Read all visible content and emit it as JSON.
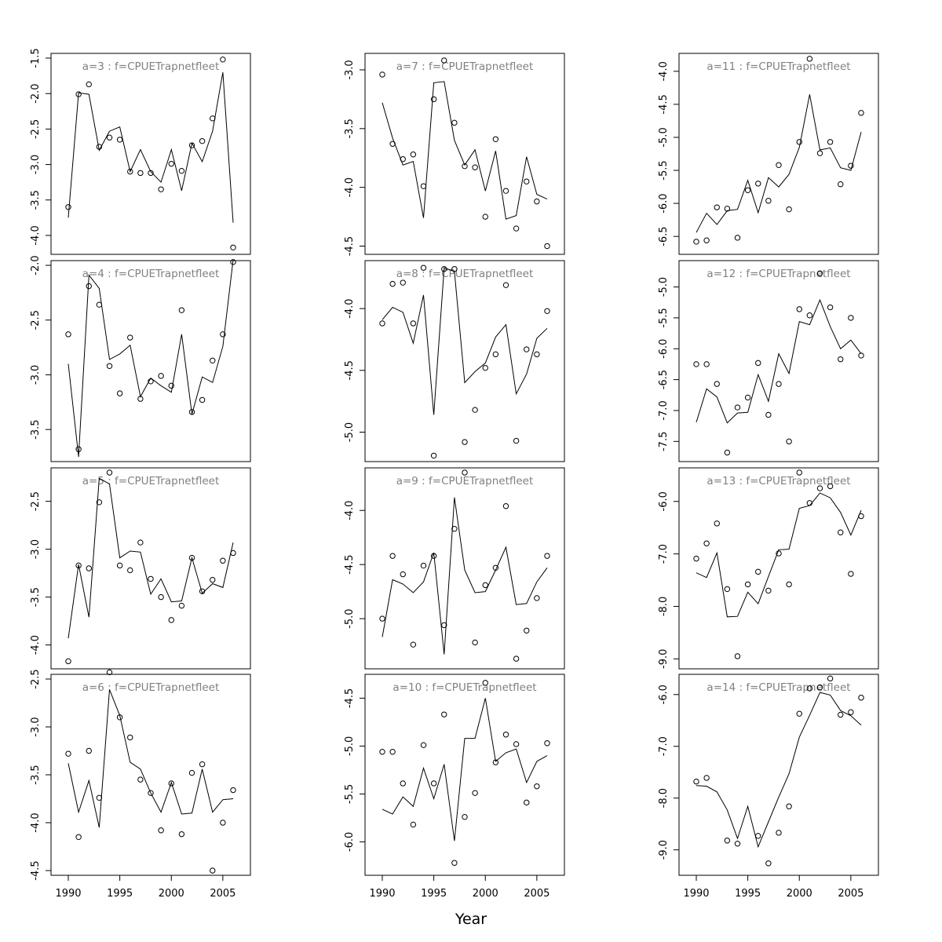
{
  "figure": {
    "xlabel": "Year"
  },
  "chart_data": [
    {
      "type": "line",
      "title": "a=3  :  f=CPUETrapnetfleet",
      "xlim": [
        1990,
        2006
      ],
      "ylim": [
        -4.2,
        -1.5
      ],
      "yticks": [
        "-1.5",
        "-2.0",
        "-2.5",
        "-3.0",
        "-3.5",
        "-4.0"
      ],
      "xticks": [],
      "x": [
        1990,
        1991,
        1992,
        1993,
        1994,
        1995,
        1996,
        1997,
        1998,
        1999,
        2000,
        2001,
        2002,
        2003,
        2004,
        2005,
        2006
      ],
      "series": [
        {
          "style": "line",
          "values": [
            -3.75,
            -1.99,
            -2.01,
            -2.8,
            -2.53,
            -2.47,
            -3.1,
            -2.79,
            -3.1,
            -3.25,
            -2.79,
            -3.37,
            -2.7,
            -2.96,
            -2.53,
            -1.7,
            -3.82
          ]
        },
        {
          "style": "points",
          "values": [
            -3.6,
            -2.01,
            -1.87,
            -2.75,
            -2.62,
            -2.65,
            -3.1,
            -3.12,
            -3.12,
            -3.35,
            -2.99,
            -3.09,
            -2.73,
            -2.67,
            -2.35,
            -1.52,
            -4.17
          ]
        }
      ]
    },
    {
      "type": "line",
      "title": "a=4  :  f=CPUETrapnetfleet",
      "xlim": [
        1990,
        2006
      ],
      "ylim": [
        -3.75,
        -2.0
      ],
      "yticks": [
        "-2.0",
        "-2.5",
        "-3.0",
        "-3.5"
      ],
      "xticks": [],
      "x": [
        1990,
        1991,
        1992,
        1993,
        1994,
        1995,
        1996,
        1997,
        1998,
        1999,
        2000,
        2001,
        2002,
        2003,
        2004,
        2005,
        2006
      ],
      "series": [
        {
          "style": "line",
          "values": [
            -2.9,
            -3.75,
            -2.09,
            -2.21,
            -2.86,
            -2.81,
            -2.73,
            -3.2,
            -3.03,
            -3.1,
            -3.16,
            -2.63,
            -3.36,
            -3.02,
            -3.07,
            -2.74,
            -1.95
          ]
        },
        {
          "style": "points",
          "values": [
            -2.63,
            -3.68,
            -2.19,
            -2.36,
            -2.92,
            -3.17,
            -2.66,
            -3.22,
            -3.06,
            -3.01,
            -3.1,
            -2.41,
            -3.34,
            -3.23,
            -2.87,
            -2.63,
            -1.97
          ]
        }
      ]
    },
    {
      "type": "line",
      "title": "a=5  :  f=CPUETrapnetfleet",
      "xlim": [
        1990,
        2006
      ],
      "ylim": [
        -4.2,
        -2.2
      ],
      "yticks": [
        "-2.5",
        "-3.0",
        "-3.5",
        "-4.0"
      ],
      "xticks": [],
      "x": [
        1990,
        1991,
        1992,
        1993,
        1994,
        1995,
        1996,
        1997,
        1998,
        1999,
        2000,
        2001,
        2002,
        2003,
        2004,
        2005,
        2006
      ],
      "series": [
        {
          "style": "line",
          "values": [
            -3.93,
            -3.16,
            -3.71,
            -2.26,
            -2.32,
            -3.09,
            -3.02,
            -3.03,
            -3.47,
            -3.31,
            -3.55,
            -3.54,
            -3.09,
            -3.46,
            -3.36,
            -3.4,
            -2.93
          ]
        },
        {
          "style": "points",
          "values": [
            -4.17,
            -3.17,
            -3.2,
            -2.51,
            -2.2,
            -3.17,
            -3.22,
            -2.93,
            -3.31,
            -3.5,
            -3.74,
            -3.59,
            -3.09,
            -3.44,
            -3.32,
            -3.12,
            -3.04
          ]
        }
      ]
    },
    {
      "type": "line",
      "title": "a=6  :  f=CPUETrapnetfleet",
      "xlim": [
        1990,
        2006
      ],
      "ylim": [
        -4.5,
        -2.5
      ],
      "yticks": [
        "-2.5",
        "-3.0",
        "-3.5",
        "-4.0",
        "-4.5"
      ],
      "xticks": [
        "1990",
        "1995",
        "2000",
        "2005"
      ],
      "x": [
        1990,
        1991,
        1992,
        1993,
        1994,
        1995,
        1996,
        1997,
        1998,
        1999,
        2000,
        2001,
        2002,
        2003,
        2004,
        2005,
        2006
      ],
      "series": [
        {
          "style": "line",
          "values": [
            -3.38,
            -3.89,
            -3.56,
            -4.05,
            -2.61,
            -2.88,
            -3.37,
            -3.44,
            -3.69,
            -3.89,
            -3.58,
            -3.91,
            -3.9,
            -3.44,
            -3.89,
            -3.76,
            -3.75
          ]
        },
        {
          "style": "points",
          "values": [
            -3.28,
            -4.15,
            -3.25,
            -3.74,
            -2.43,
            -2.9,
            -3.11,
            -3.55,
            -3.69,
            -4.08,
            -3.59,
            -4.12,
            -3.48,
            -3.39,
            -4.5,
            -4.0,
            -3.66
          ]
        }
      ]
    },
    {
      "type": "line",
      "title": "a=7  :  f=CPUETrapnetfleet",
      "xlim": [
        1990,
        2006
      ],
      "ylim": [
        -4.53,
        -2.9
      ],
      "yticks": [
        "-3.0",
        "-3.5",
        "-4.0",
        "-4.5"
      ],
      "xticks": [],
      "x": [
        1990,
        1991,
        1992,
        1993,
        1994,
        1995,
        1996,
        1997,
        1998,
        1999,
        2000,
        2001,
        2002,
        2003,
        2004,
        2005,
        2006
      ],
      "series": [
        {
          "style": "line",
          "values": [
            -3.28,
            -3.58,
            -3.81,
            -3.78,
            -4.26,
            -3.11,
            -3.1,
            -3.6,
            -3.81,
            -3.68,
            -4.03,
            -3.69,
            -4.27,
            -4.24,
            -3.74,
            -4.06,
            -4.1
          ]
        },
        {
          "style": "points",
          "values": [
            -3.04,
            -3.63,
            -3.76,
            -3.72,
            -3.99,
            -3.25,
            -2.92,
            -3.45,
            -3.82,
            -3.83,
            -4.25,
            -3.59,
            -4.03,
            -4.35,
            -3.95,
            -4.12,
            -4.5
          ]
        }
      ]
    },
    {
      "type": "line",
      "title": "a=8  :  f=CPUETrapnetfleet",
      "xlim": [
        1990,
        2006
      ],
      "ylim": [
        -5.2,
        -3.65
      ],
      "yticks": [
        "-4.0",
        "-4.5",
        "-5.0"
      ],
      "xticks": [],
      "x": [
        1990,
        1991,
        1992,
        1993,
        1994,
        1995,
        1996,
        1997,
        1998,
        1999,
        2000,
        2001,
        2002,
        2003,
        2004,
        2005,
        2006
      ],
      "series": [
        {
          "style": "line",
          "values": [
            -4.09,
            -3.99,
            -4.03,
            -4.28,
            -3.89,
            -4.86,
            -3.67,
            -3.7,
            -4.6,
            -4.51,
            -4.44,
            -4.23,
            -4.13,
            -4.69,
            -4.53,
            -4.24,
            -4.16
          ]
        },
        {
          "style": "points",
          "values": [
            -4.12,
            -3.8,
            -3.79,
            -4.12,
            -3.67,
            -5.19,
            -3.68,
            -3.68,
            -5.08,
            -4.82,
            -4.48,
            -4.37,
            -3.81,
            -5.07,
            -4.33,
            -4.37,
            -4.02
          ]
        }
      ]
    },
    {
      "type": "line",
      "title": "a=9  :  f=CPUETrapnetfleet",
      "xlim": [
        1990,
        2006
      ],
      "ylim": [
        -5.42,
        -3.65
      ],
      "yticks": [
        "-4.0",
        "-4.5",
        "-5.0"
      ],
      "xticks": [],
      "x": [
        1990,
        1991,
        1992,
        1993,
        1994,
        1995,
        1996,
        1997,
        1998,
        1999,
        2000,
        2001,
        2002,
        2003,
        2004,
        2005,
        2006
      ],
      "series": [
        {
          "style": "line",
          "values": [
            -5.17,
            -4.64,
            -4.68,
            -4.76,
            -4.66,
            -4.39,
            -5.33,
            -3.88,
            -4.55,
            -4.76,
            -4.75,
            -4.55,
            -4.34,
            -4.87,
            -4.86,
            -4.66,
            -4.53
          ]
        },
        {
          "style": "points",
          "values": [
            -5.0,
            -4.42,
            -4.59,
            -5.24,
            -4.51,
            -4.42,
            -5.06,
            -4.17,
            -3.65,
            -5.22,
            -4.69,
            -4.53,
            -3.96,
            -5.37,
            -5.11,
            -4.81,
            -4.42
          ]
        }
      ]
    },
    {
      "type": "line",
      "title": "a=10  :  f=CPUETrapnetfleet",
      "xlim": [
        1990,
        2006
      ],
      "ylim": [
        -6.3,
        -4.3
      ],
      "yticks": [
        "-4.5",
        "-5.0",
        "-5.5",
        "-6.0"
      ],
      "xticks": [
        "1990",
        "1995",
        "2000",
        "2005"
      ],
      "x": [
        1990,
        1991,
        1992,
        1993,
        1994,
        1995,
        1996,
        1997,
        1998,
        1999,
        2000,
        2001,
        2002,
        2003,
        2004,
        2005,
        2006
      ],
      "series": [
        {
          "style": "line",
          "values": [
            -5.66,
            -5.71,
            -5.53,
            -5.63,
            -5.23,
            -5.55,
            -5.19,
            -5.99,
            -4.92,
            -4.92,
            -4.5,
            -5.16,
            -5.07,
            -5.03,
            -5.38,
            -5.16,
            -5.1
          ]
        },
        {
          "style": "points",
          "values": [
            -5.06,
            -5.06,
            -5.39,
            -5.82,
            -4.99,
            -5.39,
            -4.67,
            -6.22,
            -5.74,
            -5.49,
            -4.34,
            -5.17,
            -4.88,
            -4.98,
            -5.59,
            -5.42,
            -4.97
          ]
        }
      ]
    },
    {
      "type": "line",
      "title": "a=11  :  f=CPUETrapnetfleet",
      "xlim": [
        1990,
        2006
      ],
      "ylim": [
        -6.7,
        -3.8
      ],
      "yticks": [
        "-4.0",
        "-4.5",
        "-5.0",
        "-5.5",
        "-6.0",
        "-6.5"
      ],
      "xticks": [],
      "x": [
        1990,
        1991,
        1992,
        1993,
        1994,
        1995,
        1996,
        1997,
        1998,
        1999,
        2000,
        2001,
        2002,
        2003,
        2004,
        2005,
        2006
      ],
      "series": [
        {
          "style": "line",
          "values": [
            -6.44,
            -6.15,
            -6.32,
            -6.11,
            -6.09,
            -5.65,
            -6.14,
            -5.61,
            -5.75,
            -5.56,
            -5.15,
            -4.35,
            -5.19,
            -5.16,
            -5.46,
            -5.5,
            -4.92
          ]
        },
        {
          "style": "points",
          "values": [
            -6.58,
            -6.56,
            -6.06,
            -6.08,
            -6.52,
            -5.8,
            -5.7,
            -5.96,
            -5.42,
            -6.09,
            -5.07,
            -3.81,
            -5.24,
            -5.07,
            -5.71,
            -5.43,
            -4.63
          ]
        }
      ]
    },
    {
      "type": "line",
      "title": "a=12  :  f=CPUETrapnetfleet",
      "xlim": [
        1990,
        2006
      ],
      "ylim": [
        -7.75,
        -4.65
      ],
      "yticks": [
        "-5.0",
        "-5.5",
        "-6.0",
        "-6.5",
        "-7.0",
        "-7.5"
      ],
      "xticks": [],
      "x": [
        1990,
        1991,
        1992,
        1993,
        1994,
        1995,
        1996,
        1997,
        1998,
        1999,
        2000,
        2001,
        2002,
        2003,
        2004,
        2005,
        2006
      ],
      "series": [
        {
          "style": "line",
          "values": [
            -7.19,
            -6.65,
            -6.78,
            -7.2,
            -7.04,
            -7.03,
            -6.42,
            -6.85,
            -6.08,
            -6.4,
            -5.56,
            -5.61,
            -5.21,
            -5.64,
            -6.0,
            -5.86,
            -6.08
          ]
        },
        {
          "style": "points",
          "values": [
            -6.25,
            -6.25,
            -6.57,
            -7.68,
            -6.95,
            -6.79,
            -6.23,
            -7.07,
            -6.57,
            -7.5,
            -5.36,
            -5.46,
            -4.78,
            -5.33,
            -6.17,
            -5.5,
            -6.11
          ]
        }
      ]
    },
    {
      "type": "line",
      "title": "a=13  :  f=CPUETrapnetfleet",
      "xlim": [
        1990,
        2006
      ],
      "ylim": [
        -9.1,
        -5.45
      ],
      "yticks": [
        "-6.0",
        "-7.0",
        "-8.0",
        "-9.0"
      ],
      "xticks": [],
      "x": [
        1990,
        1991,
        1992,
        1993,
        1994,
        1995,
        1996,
        1997,
        1998,
        1999,
        2000,
        2001,
        2002,
        2003,
        2004,
        2005,
        2006
      ],
      "series": [
        {
          "style": "line",
          "values": [
            -7.36,
            -7.45,
            -6.98,
            -8.2,
            -8.19,
            -7.73,
            -7.95,
            -7.43,
            -6.92,
            -6.91,
            -6.13,
            -6.08,
            -5.84,
            -5.93,
            -6.21,
            -6.64,
            -6.17
          ]
        },
        {
          "style": "points",
          "values": [
            -7.09,
            -6.8,
            -6.42,
            -7.67,
            -8.95,
            -7.58,
            -7.34,
            -7.7,
            -6.99,
            -7.58,
            -5.45,
            -6.03,
            -5.75,
            -5.71,
            -6.59,
            -7.38,
            -6.28
          ]
        }
      ]
    },
    {
      "type": "line",
      "title": "a=14  :  f=CPUETrapnetfleet",
      "xlim": [
        1990,
        2006
      ],
      "ylim": [
        -9.4,
        -5.7
      ],
      "yticks": [
        "-6.0",
        "-7.0",
        "-8.0",
        "-9.0"
      ],
      "xticks": [
        "1990",
        "1995",
        "2000",
        "2005"
      ],
      "x": [
        1990,
        1991,
        1992,
        1993,
        1994,
        1995,
        1996,
        1997,
        1998,
        1999,
        2000,
        2001,
        2002,
        2003,
        2004,
        2005,
        2006
      ],
      "series": [
        {
          "style": "line",
          "values": [
            -7.76,
            -7.77,
            -7.88,
            -8.23,
            -8.78,
            -8.16,
            -8.94,
            -8.46,
            -7.98,
            -7.53,
            -6.82,
            -6.4,
            -5.96,
            -6.01,
            -6.31,
            -6.41,
            -6.59
          ]
        },
        {
          "style": "points",
          "values": [
            -7.68,
            -7.61,
            null,
            -8.82,
            -8.88,
            null,
            -8.73,
            -9.26,
            -8.67,
            -8.16,
            -6.37,
            -5.88,
            -5.86,
            -5.69,
            -6.39,
            -6.34,
            -6.06
          ]
        }
      ]
    }
  ]
}
